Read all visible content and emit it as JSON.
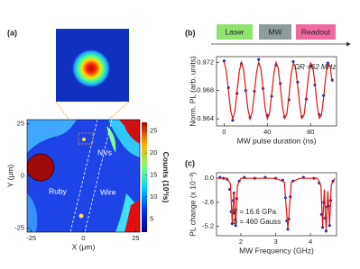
{
  "chart_data": [
    {
      "type": "image",
      "label": "(a)",
      "xlabel": "X (μm)",
      "ylabel": "Y (μm)",
      "xlim": [
        -27,
        27
      ],
      "ylim": [
        -27,
        27
      ],
      "xticks": [
        -25,
        0,
        25
      ],
      "yticks": [
        -25,
        0,
        25
      ],
      "colorbar": {
        "label": "Counts (10³/s)",
        "lim": [
          2,
          27
        ],
        "ticks": [
          5,
          10,
          15,
          20,
          25
        ]
      },
      "annotations": [
        "NVs",
        "Ruby",
        "Wire"
      ]
    },
    {
      "type": "scatter",
      "label": "(b)",
      "sequence": [
        {
          "label": "Laser",
          "color": "#8fe46f"
        },
        {
          "label": "MW",
          "color": "#8e9c9c"
        },
        {
          "label": "Readout",
          "color": "#f06aa0"
        }
      ],
      "xlabel": "MW pulse duration (ns)",
      "ylabel": "Norm. PL (arb. units)",
      "annotation": "ΩR =62 MHz",
      "xlim": [
        -7,
        104
      ],
      "ylim": [
        0.963,
        0.9728
      ],
      "xticks": [
        0,
        40,
        80
      ],
      "yticks": [
        0.964,
        0.968,
        0.972
      ],
      "series": [
        {
          "style": "points",
          "color": "#1a2fb0",
          "x": [
            0,
            4,
            8,
            12,
            16,
            20,
            24,
            28,
            32,
            36,
            40,
            44,
            48,
            52,
            56,
            60,
            64,
            68,
            72,
            76,
            80,
            84,
            88,
            92,
            96,
            100
          ],
          "values": [
            0.9722,
            0.9684,
            0.9638,
            0.9676,
            0.9718,
            0.968,
            0.9642,
            0.9679,
            0.9724,
            0.9683,
            0.9645,
            0.9672,
            0.9716,
            0.969,
            0.9643,
            0.9667,
            0.9721,
            0.9692,
            0.9643,
            0.9668,
            0.9715,
            0.9688,
            0.9646,
            0.9673,
            0.9719,
            0.9695
          ]
        },
        {
          "style": "line",
          "color": "#e01515",
          "x": [
            0,
            2,
            4,
            6,
            8,
            10,
            12,
            14,
            16,
            18,
            20,
            22,
            24,
            26,
            28,
            30,
            32,
            34,
            36,
            38,
            40,
            42,
            44,
            46,
            48,
            50,
            52,
            54,
            56,
            58,
            60,
            62,
            64,
            66,
            68,
            70,
            72,
            74,
            76,
            78,
            80,
            82,
            84,
            86,
            88,
            90,
            92,
            94,
            96,
            98,
            100
          ],
          "values": [
            0.972,
            0.9708,
            0.968,
            0.9652,
            0.964,
            0.9651,
            0.9679,
            0.9707,
            0.972,
            0.971,
            0.9682,
            0.9654,
            0.964,
            0.965,
            0.9677,
            0.9706,
            0.972,
            0.9711,
            0.9684,
            0.9655,
            0.964,
            0.9648,
            0.9675,
            0.9704,
            0.972,
            0.9712,
            0.9686,
            0.9657,
            0.9641,
            0.9647,
            0.9673,
            0.9703,
            0.9719,
            0.9713,
            0.9688,
            0.9658,
            0.9641,
            0.9646,
            0.9671,
            0.9701,
            0.9719,
            0.9714,
            0.969,
            0.966,
            0.9641,
            0.9645,
            0.9669,
            0.97,
            0.9718,
            0.9715,
            0.9692
          ]
        }
      ]
    },
    {
      "type": "scatter",
      "label": "(c)",
      "xlabel": "MW Frequency (GHz)",
      "ylabel": "PL change (x 10⁻³)",
      "annotations": [
        "P = 16.6 GPa",
        "B = 460 Gauss"
      ],
      "xlim": [
        1.3,
        4.75
      ],
      "ylim": [
        -6.2,
        0.6
      ],
      "xticks": [
        2,
        3,
        4
      ],
      "yticks": [
        {
          "value": 0,
          "label": "0.0"
        },
        -2.6,
        -5.2
      ],
      "series": [
        {
          "style": "points",
          "color": "#1a2fb0",
          "x": [
            1.4,
            1.5,
            1.6,
            1.68,
            1.72,
            1.75,
            1.78,
            1.8,
            1.83,
            1.85,
            1.88,
            1.95,
            2.1,
            2.4,
            2.7,
            3.0,
            3.2,
            3.28,
            3.32,
            3.35,
            3.38,
            3.42,
            3.5,
            3.8,
            4.1,
            4.25,
            4.32,
            4.35,
            4.38,
            4.42,
            4.45,
            4.48,
            4.52,
            4.55,
            4.58,
            4.65
          ],
          "values": [
            0.1,
            0,
            -0.1,
            -1.2,
            -3.6,
            -4.9,
            -2.4,
            -1.6,
            -3.8,
            -5.1,
            -2.2,
            -0.3,
            0.1,
            0,
            0.1,
            0,
            -0.2,
            -2.1,
            -4.6,
            -5.5,
            -4.4,
            -2.0,
            -0.3,
            0.1,
            0,
            -0.5,
            -3.9,
            -5.3,
            -2.6,
            -4.3,
            -5.7,
            -3.1,
            -3.0,
            -5.1,
            -2.4,
            -0.3
          ]
        },
        {
          "style": "line",
          "color": "#e01515",
          "x": [
            1.3,
            1.6,
            1.7,
            1.75,
            1.8,
            1.85,
            1.9,
            2.0,
            3.0,
            3.25,
            3.3,
            3.35,
            3.4,
            3.45,
            3.7,
            4.2,
            4.3,
            4.35,
            4.4,
            4.45,
            4.5,
            4.55,
            4.6,
            4.7
          ],
          "values": [
            0,
            0,
            -0.6,
            -4.8,
            -1.5,
            -5.0,
            -0.8,
            0,
            0,
            -0.4,
            -3.0,
            -5.4,
            -3.0,
            -0.4,
            0,
            0,
            -0.8,
            -5.2,
            -1.2,
            -5.6,
            -1.4,
            -5.0,
            -0.7,
            0
          ]
        }
      ]
    }
  ]
}
